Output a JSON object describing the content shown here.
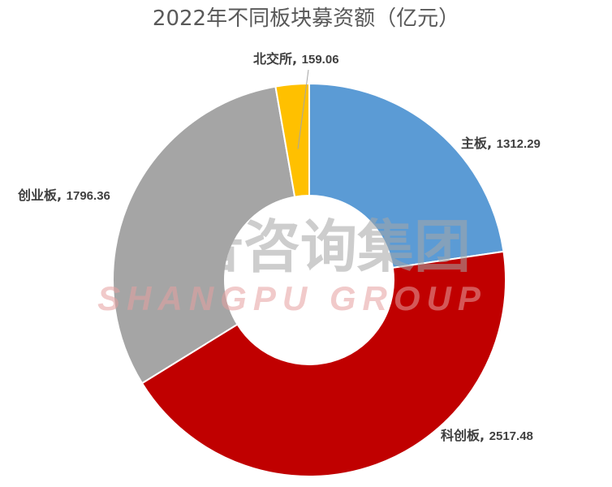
{
  "chart_data": {
    "type": "pie",
    "title": "2022年不同板块募资额（亿元）",
    "categories": [
      "主板",
      "科创板",
      "创业板",
      "北交所"
    ],
    "values": [
      1312.29,
      2517.48,
      1796.36,
      159.06
    ],
    "colors": [
      "#5b9bd5",
      "#c00000",
      "#a5a5a5",
      "#ffc000"
    ],
    "value_labels": [
      "1312.29",
      "2517.48",
      "1796.36",
      "159.06"
    ],
    "legend": "none",
    "donut": true
  },
  "watermark": {
    "cn": "尚普咨询集团",
    "en": "SHANGPU GROUP"
  }
}
